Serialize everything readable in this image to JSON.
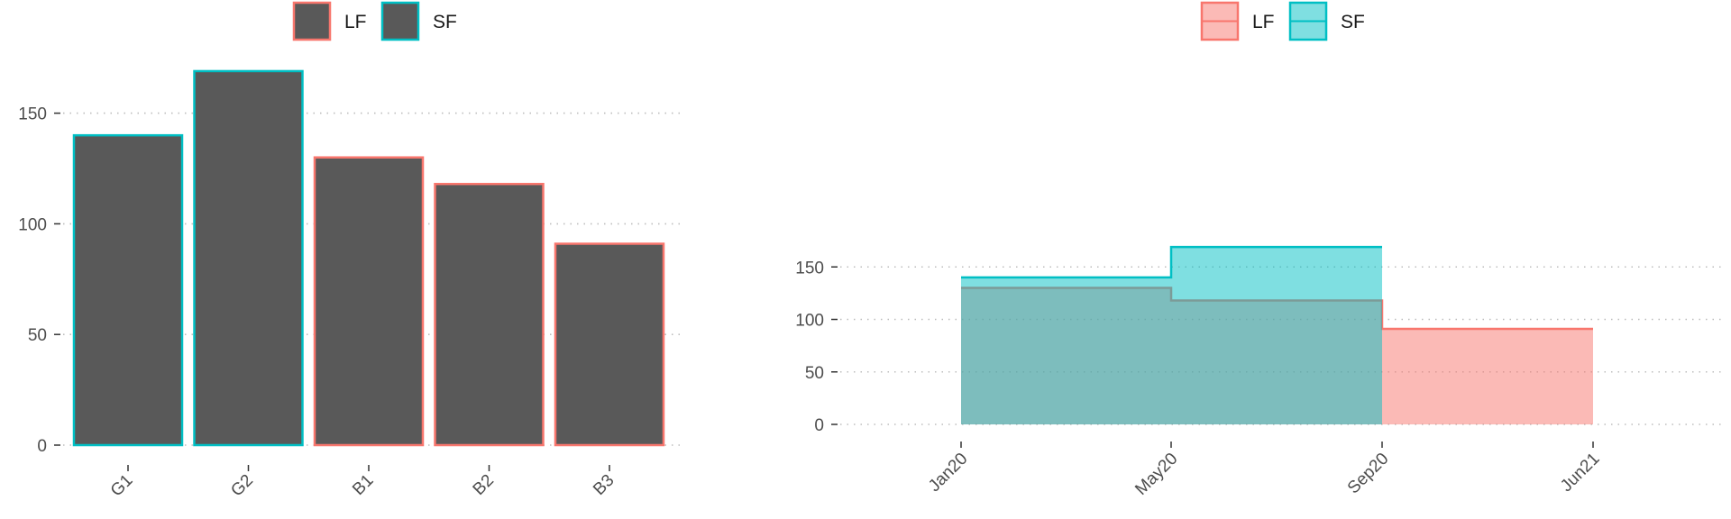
{
  "chart_data": [
    {
      "type": "bar",
      "categories": [
        "G1",
        "G2",
        "B1",
        "B2",
        "B3"
      ],
      "values": [
        140,
        169,
        130,
        118,
        91
      ],
      "groups": [
        "SF",
        "SF",
        "LF",
        "LF",
        "LF"
      ],
      "fill_color": "#595959",
      "legend": {
        "placement": "top",
        "entries": [
          {
            "label": "LF",
            "color": "#F8766D"
          },
          {
            "label": "SF",
            "color": "#00BFC4"
          }
        ]
      },
      "yticks": [
        0,
        50,
        100,
        150
      ],
      "ylim": [
        0,
        175
      ],
      "grid": "horizontal-dotted"
    },
    {
      "type": "area",
      "step": true,
      "x_ticks": [
        "Jan20",
        "May20",
        "Sep20",
        "Jun21"
      ],
      "series": [
        {
          "name": "LF",
          "color": "#F8766D",
          "x": [
            "Jan20",
            "May20",
            "Sep20",
            "Jun21"
          ],
          "y": [
            130,
            118,
            91,
            91
          ]
        },
        {
          "name": "SF",
          "color": "#00BFC4",
          "x": [
            "Jan20",
            "May20",
            "Sep20"
          ],
          "y": [
            140,
            169,
            169
          ]
        }
      ],
      "legend": {
        "placement": "top"
      },
      "yticks": [
        0,
        50,
        100,
        150
      ],
      "ylim": [
        0,
        175
      ],
      "grid": "horizontal-dotted"
    }
  ]
}
